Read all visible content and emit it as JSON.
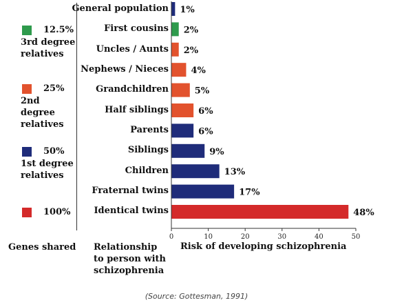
{
  "legend": {
    "items": [
      {
        "pct": "12.5%",
        "degree": "3rd degree relatives",
        "color": "#2e9a4c"
      },
      {
        "pct": "25%",
        "degree": "2nd degree relatives",
        "color": "#e2522d"
      },
      {
        "pct": "50%",
        "degree": "1st degree relatives",
        "color": "#1f2c7a"
      },
      {
        "pct": "100%",
        "degree": "",
        "color": "#d42a2a"
      }
    ]
  },
  "labels": {
    "genes_shared": "Genes shared",
    "relationship": "Relationship to person with schizophrenia",
    "source": "(Source: Gottesman, 1991)"
  },
  "chart_data": {
    "type": "bar",
    "orientation": "horizontal",
    "categories": [
      "General population",
      "First cousins",
      "Uncles / Aunts",
      "Nephews / Nieces",
      "Grandchildren",
      "Half siblings",
      "Parents",
      "Siblings",
      "Children",
      "Fraternal twins",
      "Identical twins"
    ],
    "values": [
      1,
      2,
      2,
      4,
      5,
      6,
      6,
      9,
      13,
      17,
      48
    ],
    "value_labels": [
      "1%",
      "2%",
      "2%",
      "4%",
      "5%",
      "6%",
      "6%",
      "9%",
      "13%",
      "17%",
      "48%"
    ],
    "colors": [
      "#1f2c7a",
      "#2e9a4c",
      "#e2522d",
      "#e2522d",
      "#e2522d",
      "#e2522d",
      "#1f2c7a",
      "#1f2c7a",
      "#1f2c7a",
      "#1f2c7a",
      "#d42a2a"
    ],
    "xlabel": "Risk of developing schizophrenia",
    "xlim": [
      0,
      50
    ],
    "xticks": [
      0,
      10,
      20,
      30,
      40,
      50
    ],
    "grid": false
  }
}
